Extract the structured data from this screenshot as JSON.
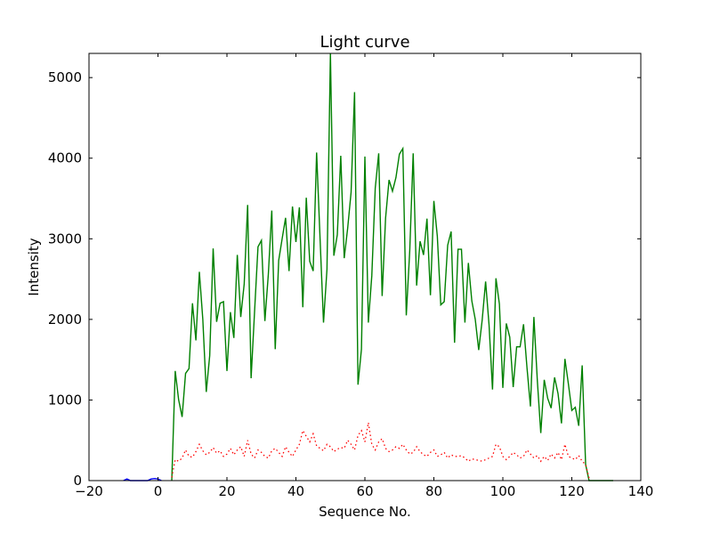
{
  "chart_data": {
    "type": "line",
    "title": "Light curve",
    "xlabel": "Sequence No.",
    "ylabel": "Intensity",
    "xlim": [
      -20,
      140
    ],
    "ylim": [
      0,
      5300
    ],
    "xticks": [
      -20,
      0,
      20,
      40,
      60,
      80,
      100,
      120,
      140
    ],
    "yticks": [
      0,
      1000,
      2000,
      3000,
      4000,
      5000
    ],
    "grid": false,
    "series": [
      {
        "color": "#008000",
        "style": "solid",
        "x": [
          4,
          5,
          6,
          7,
          8,
          9,
          10,
          11,
          12,
          13,
          14,
          15,
          16,
          17,
          18,
          19,
          20,
          21,
          22,
          23,
          24,
          25,
          26,
          27,
          28,
          29,
          30,
          31,
          32,
          33,
          34,
          35,
          36,
          37,
          38,
          39,
          40,
          41,
          42,
          43,
          44,
          45,
          46,
          47,
          48,
          49,
          50,
          51,
          52,
          53,
          54,
          55,
          56,
          57,
          58,
          59,
          60,
          61,
          62,
          63,
          64,
          65,
          66,
          67,
          68,
          69,
          70,
          71,
          72,
          73,
          74,
          75,
          76,
          77,
          78,
          79,
          80,
          81,
          82,
          83,
          84,
          85,
          86,
          87,
          88,
          89,
          90,
          91,
          92,
          93,
          94,
          95,
          96,
          97,
          98,
          99,
          100,
          101,
          102,
          103,
          104,
          105,
          106,
          107,
          108,
          109,
          110,
          111,
          112,
          113,
          114,
          115,
          116,
          117,
          118,
          119,
          120,
          121,
          122,
          123,
          124,
          125,
          126,
          127,
          128,
          129,
          130,
          131,
          132
        ],
        "values": [
          0,
          1360,
          1000,
          790,
          1330,
          1390,
          2200,
          1740,
          2590,
          2000,
          1100,
          1550,
          2880,
          1970,
          2200,
          2220,
          1360,
          2090,
          1770,
          2800,
          2030,
          2440,
          3420,
          1270,
          2090,
          2900,
          2980,
          1980,
          2560,
          3350,
          1630,
          2730,
          3000,
          3260,
          2600,
          3400,
          2960,
          3390,
          2150,
          3510,
          2720,
          2600,
          4070,
          3000,
          1960,
          2620,
          5300,
          2790,
          3050,
          4030,
          2760,
          3130,
          3580,
          4820,
          1190,
          1630,
          4020,
          1960,
          2540,
          3630,
          4060,
          2290,
          3260,
          3730,
          3590,
          3760,
          4050,
          4120,
          2050,
          2850,
          4060,
          2420,
          2970,
          2800,
          3250,
          2300,
          3470,
          3030,
          2180,
          2220,
          2920,
          3090,
          1710,
          2870,
          2870,
          1960,
          2700,
          2230,
          2000,
          1620,
          1990,
          2470,
          1930,
          1130,
          2510,
          2190,
          1150,
          1950,
          1780,
          1160,
          1660,
          1660,
          1940,
          1400,
          920,
          2030,
          1240,
          590,
          1250,
          1020,
          900,
          1280,
          1080,
          710,
          1510,
          1200,
          870,
          910,
          680,
          1430,
          200,
          0,
          0,
          0,
          0,
          0,
          0,
          0,
          0
        ]
      },
      {
        "color": "#ff0000",
        "style": "dotted",
        "x": [
          4,
          5,
          6,
          7,
          8,
          9,
          10,
          11,
          12,
          13,
          14,
          15,
          16,
          17,
          18,
          19,
          20,
          21,
          22,
          23,
          24,
          25,
          26,
          27,
          28,
          29,
          30,
          31,
          32,
          33,
          34,
          35,
          36,
          37,
          38,
          39,
          40,
          41,
          42,
          43,
          44,
          45,
          46,
          47,
          48,
          49,
          50,
          51,
          52,
          53,
          54,
          55,
          56,
          57,
          58,
          59,
          60,
          61,
          62,
          63,
          64,
          65,
          66,
          67,
          68,
          69,
          70,
          71,
          72,
          73,
          74,
          75,
          76,
          77,
          78,
          79,
          80,
          81,
          82,
          83,
          84,
          85,
          86,
          87,
          88,
          89,
          90,
          91,
          92,
          93,
          94,
          95,
          96,
          97,
          98,
          99,
          100,
          101,
          102,
          103,
          104,
          105,
          106,
          107,
          108,
          109,
          110,
          111,
          112,
          113,
          114,
          115,
          116,
          117,
          118,
          119,
          120,
          121,
          122,
          123,
          124,
          125
        ],
        "values": [
          40,
          260,
          240,
          280,
          380,
          300,
          290,
          360,
          450,
          370,
          320,
          350,
          410,
          340,
          370,
          300,
          330,
          400,
          320,
          380,
          420,
          300,
          500,
          330,
          280,
          380,
          350,
          300,
          280,
          370,
          400,
          350,
          300,
          420,
          350,
          300,
          380,
          450,
          620,
          550,
          480,
          580,
          430,
          400,
          370,
          450,
          420,
          360,
          390,
          410,
          400,
          500,
          450,
          380,
          560,
          620,
          480,
          720,
          450,
          380,
          480,
          520,
          400,
          360,
          380,
          420,
          400,
          450,
          380,
          330,
          350,
          420,
          360,
          320,
          300,
          350,
          380,
          300,
          320,
          350,
          280,
          320,
          300,
          300,
          310,
          280,
          240,
          270,
          260,
          250,
          240,
          260,
          280,
          300,
          450,
          420,
          300,
          260,
          300,
          350,
          320,
          280,
          300,
          380,
          330,
          280,
          310,
          240,
          300,
          250,
          330,
          280,
          350,
          260,
          450,
          300,
          280,
          260,
          310,
          240,
          200,
          30
        ]
      },
      {
        "color": "#0000ff",
        "style": "solid",
        "x": [
          -10,
          -9,
          -8,
          -3,
          -2,
          -1,
          0,
          1
        ],
        "values": [
          0,
          20,
          0,
          0,
          20,
          25,
          20,
          0
        ]
      }
    ]
  }
}
